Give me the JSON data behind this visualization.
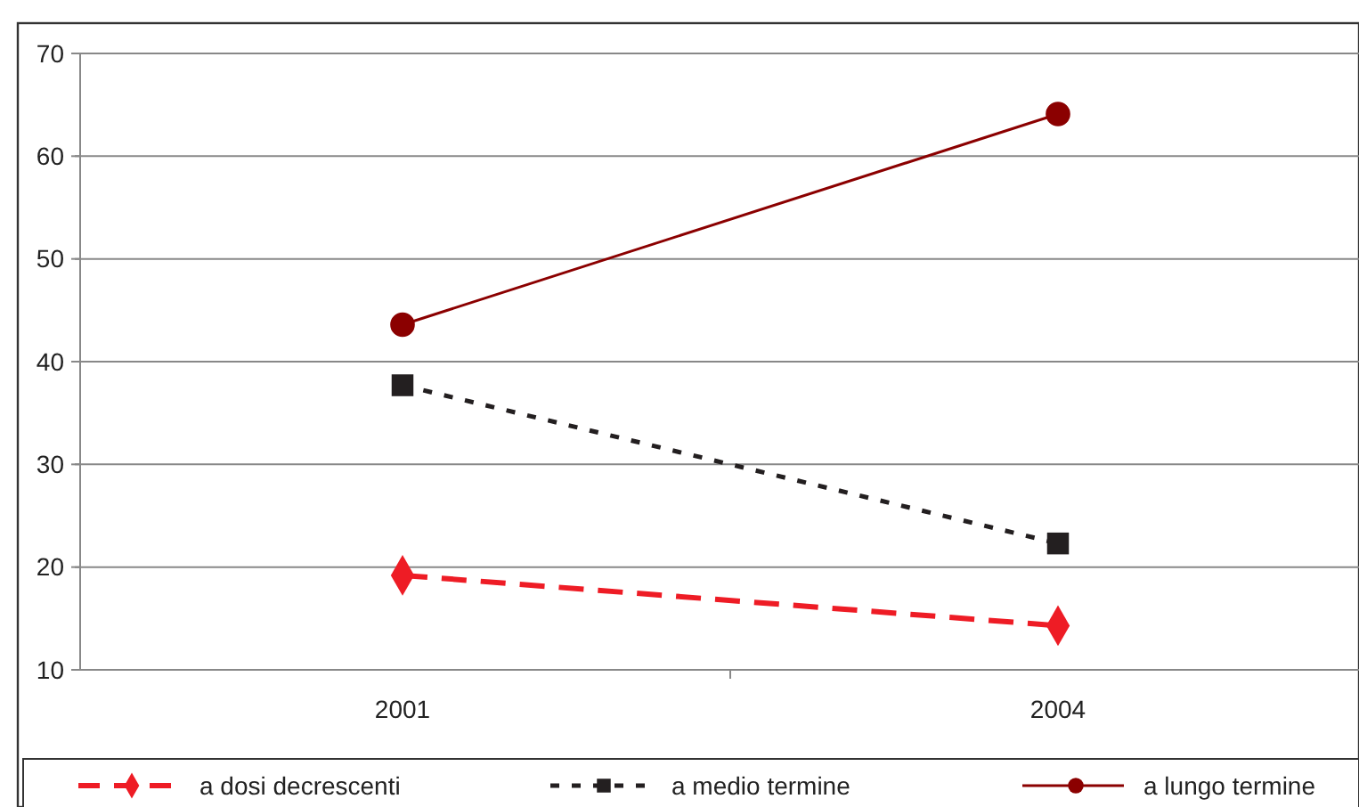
{
  "chart_data": {
    "type": "line",
    "categories": [
      "2001",
      "2004"
    ],
    "series": [
      {
        "name": "a dosi decrescenti",
        "color": "#ee1c25",
        "values": [
          19.2,
          14.3
        ],
        "marker": "diamond",
        "line_style": "dashed"
      },
      {
        "name": "a medio termine",
        "color": "#231f20",
        "values": [
          37.7,
          22.3
        ],
        "marker": "square",
        "line_style": "dotted"
      },
      {
        "name": "a lungo termine",
        "color": "#8b0000",
        "values": [
          43.6,
          64.1
        ],
        "marker": "circle",
        "line_style": "solid"
      }
    ],
    "ylim": [
      10,
      70
    ],
    "yticks": [
      10,
      20,
      30,
      40,
      50,
      60,
      70
    ],
    "grid": "y",
    "legend": "bottom"
  }
}
